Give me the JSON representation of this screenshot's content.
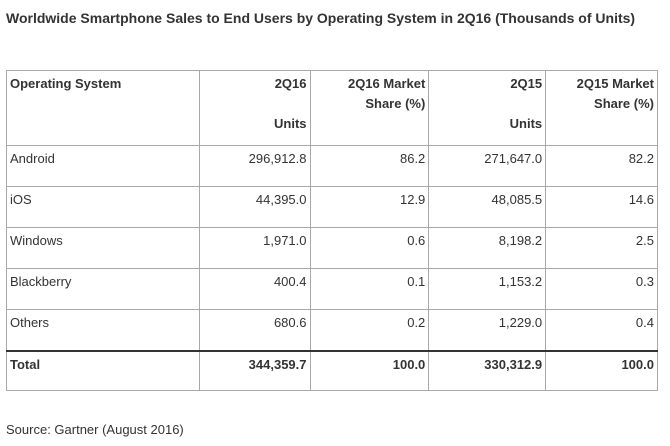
{
  "title": "Worldwide Smartphone Sales to End Users by Operating System in 2Q16 (Thousands of Units)",
  "source": "Source: Gartner (August 2016)",
  "chart_data": {
    "type": "table",
    "title": "Worldwide Smartphone Sales to End Users by Operating System in 2Q16 (Thousands of Units)",
    "columns": [
      {
        "label": "Operating System",
        "sub": ""
      },
      {
        "label": "2Q16",
        "sub": "Units"
      },
      {
        "label": "2Q16 Market Share (%)",
        "sub": ""
      },
      {
        "label": "2Q15",
        "sub": "Units"
      },
      {
        "label": "2Q15 Market Share (%)",
        "sub": ""
      }
    ],
    "rows": [
      [
        "Android",
        "296,912.8",
        "86.2",
        "271,647.0",
        "82.2"
      ],
      [
        "iOS",
        "44,395.0",
        "12.9",
        "48,085.5",
        "14.6"
      ],
      [
        "Windows",
        "1,971.0",
        "0.6",
        "8,198.2",
        "2.5"
      ],
      [
        "Blackberry",
        "400.4",
        "0.1",
        "1,153.2",
        "0.3"
      ],
      [
        "Others",
        "680.6",
        "0.2",
        "1,229.0",
        "0.4"
      ]
    ],
    "total": [
      "Total",
      "344,359.7",
      "100.0",
      "330,312.9",
      "100.0"
    ]
  }
}
